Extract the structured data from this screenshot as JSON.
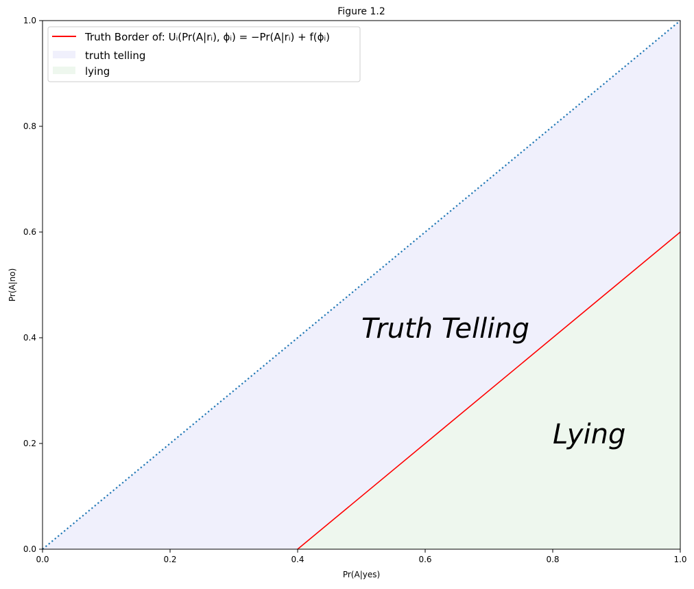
{
  "chart_data": {
    "type": "line",
    "title": "Figure 1.2",
    "xlabel": "Pr(A|yes)",
    "ylabel": "Pr(A|no)",
    "xlim": [
      0,
      1
    ],
    "ylim": [
      0,
      1
    ],
    "xticks": [
      "0.0",
      "0.2",
      "0.4",
      "0.6",
      "0.8",
      "1.0"
    ],
    "yticks": [
      "0.0",
      "0.2",
      "0.4",
      "0.6",
      "0.8",
      "1.0"
    ],
    "grid": false,
    "legend_position": "top-left",
    "series": [
      {
        "name": "Truth Border of: Uᵢ(Pr(A|rᵢ), ϕᵢ) = −Pr(A|rᵢ) + f(ϕᵢ)",
        "style": "solid",
        "color": "#ff0000",
        "x": [
          0.4,
          1.0
        ],
        "y": [
          0.0,
          0.6
        ]
      },
      {
        "style": "dotted",
        "color": "#1f77b4",
        "x": [
          0.0,
          1.0
        ],
        "y": [
          0.0,
          1.0
        ]
      }
    ],
    "fills": [
      {
        "name": "truth telling",
        "color": "#f0f0fc",
        "x": [
          0.0,
          1.0,
          1.0,
          0.4
        ],
        "y": [
          0.0,
          1.0,
          0.6,
          0.0
        ]
      },
      {
        "name": "lying",
        "color": "#eef7ee",
        "x": [
          0.4,
          1.0,
          1.0
        ],
        "y": [
          0.0,
          0.6,
          0.0
        ]
      }
    ],
    "annotations": [
      {
        "text": "Truth Telling",
        "x": 0.5,
        "y": 0.4
      },
      {
        "text": "Lying",
        "x": 0.8,
        "y": 0.2
      }
    ]
  }
}
